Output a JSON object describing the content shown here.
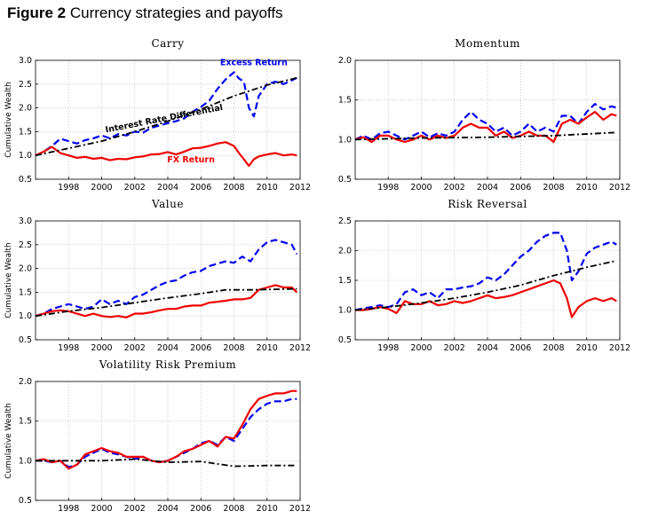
{
  "figure_label": "Figure 2",
  "figure_title": "Currency strategies and payoffs",
  "colors": {
    "excess": "#0000ee",
    "fx": "#ee0000",
    "ird": "#000000"
  },
  "chart_data": [
    {
      "type": "line",
      "title": "Carry",
      "ylabel": "Cumulative Wealth",
      "xlim": [
        1996,
        2012
      ],
      "ylim": [
        0.5,
        3.0
      ],
      "xticks": [
        1998,
        2000,
        2002,
        2004,
        2006,
        2008,
        2010,
        2012
      ],
      "yticks": [
        "0.5",
        "1.0",
        "1.5",
        "2.0",
        "2.5",
        "3.0"
      ],
      "grid": true,
      "annotations": [
        {
          "text": "Excess Return",
          "x": 2009.2,
          "y": 2.9,
          "color": "#0000ee",
          "rotate": 0
        },
        {
          "text": "Interest Rate Differential",
          "x": 2003.8,
          "y": 1.72,
          "color": "#000000",
          "rotate": -11
        },
        {
          "text": "FX Return",
          "x": 2005.4,
          "y": 0.85,
          "color": "#ee0000",
          "rotate": 0
        }
      ],
      "series": [
        {
          "key": "excess",
          "x": [
            1996,
            1996.5,
            1997,
            1997.5,
            1998,
            1998.5,
            1999,
            1999.5,
            2000,
            2000.5,
            2001,
            2001.5,
            2002,
            2002.5,
            2003,
            2003.5,
            2004,
            2004.5,
            2005,
            2005.5,
            2006,
            2006.5,
            2007,
            2007.5,
            2008,
            2008.3,
            2008.6,
            2008.9,
            2009.2,
            2009.5,
            2010,
            2010.5,
            2011,
            2011.5,
            2011.8
          ],
          "y": [
            1.0,
            1.08,
            1.2,
            1.35,
            1.3,
            1.25,
            1.32,
            1.36,
            1.42,
            1.36,
            1.45,
            1.42,
            1.5,
            1.48,
            1.58,
            1.63,
            1.68,
            1.72,
            1.78,
            1.92,
            2.02,
            2.15,
            2.4,
            2.6,
            2.75,
            2.62,
            2.55,
            2.0,
            1.82,
            2.25,
            2.5,
            2.55,
            2.5,
            2.58,
            2.63
          ]
        },
        {
          "key": "fx",
          "x": [
            1996,
            1996.5,
            1997,
            1997.5,
            1998,
            1998.5,
            1999,
            1999.5,
            2000,
            2000.5,
            2001,
            2001.5,
            2002,
            2002.5,
            2003,
            2003.5,
            2004,
            2004.5,
            2005,
            2005.5,
            2006,
            2006.5,
            2007,
            2007.5,
            2008,
            2008.3,
            2008.6,
            2008.9,
            2009.2,
            2009.5,
            2010,
            2010.5,
            2011,
            2011.5,
            2011.8
          ],
          "y": [
            1.0,
            1.08,
            1.18,
            1.05,
            1.0,
            0.95,
            0.97,
            0.93,
            0.95,
            0.9,
            0.93,
            0.92,
            0.96,
            0.98,
            1.02,
            1.03,
            1.07,
            1.02,
            1.08,
            1.15,
            1.16,
            1.2,
            1.25,
            1.28,
            1.2,
            1.05,
            0.92,
            0.78,
            0.92,
            0.98,
            1.02,
            1.05,
            1.0,
            1.02,
            1.0
          ]
        },
        {
          "key": "ird",
          "x": [
            1996,
            1998,
            2000,
            2002,
            2004,
            2006,
            2008,
            2010,
            2011.8
          ],
          "y": [
            1.0,
            1.15,
            1.3,
            1.5,
            1.72,
            1.97,
            2.25,
            2.48,
            2.63
          ]
        }
      ]
    },
    {
      "type": "line",
      "title": "Momentum",
      "ylabel": "",
      "xlim": [
        1996,
        2012
      ],
      "ylim": [
        0.5,
        2.0
      ],
      "xticks": [
        1998,
        2000,
        2002,
        2004,
        2006,
        2008,
        2010,
        2012
      ],
      "yticks": [
        "0.5",
        "1.0",
        "1.5",
        "2.0"
      ],
      "grid": true,
      "annotations": [],
      "series": [
        {
          "key": "excess",
          "x": [
            1996,
            1996.5,
            1997,
            1997.5,
            1998,
            1998.5,
            1999,
            1999.5,
            2000,
            2000.5,
            2001,
            2001.5,
            2002,
            2002.5,
            2003,
            2003.5,
            2004,
            2004.5,
            2005,
            2005.5,
            2006,
            2006.5,
            2007,
            2007.5,
            2008,
            2008.5,
            2009,
            2009.5,
            2010,
            2010.5,
            2011,
            2011.5,
            2011.8
          ],
          "y": [
            1.0,
            1.05,
            1.0,
            1.08,
            1.1,
            1.05,
            1.0,
            1.05,
            1.1,
            1.03,
            1.08,
            1.05,
            1.1,
            1.25,
            1.35,
            1.25,
            1.2,
            1.1,
            1.15,
            1.05,
            1.1,
            1.2,
            1.1,
            1.15,
            1.1,
            1.3,
            1.3,
            1.2,
            1.35,
            1.45,
            1.38,
            1.42,
            1.4
          ]
        },
        {
          "key": "fx",
          "x": [
            1996,
            1996.5,
            1997,
            1997.5,
            1998,
            1998.5,
            1999,
            1999.5,
            2000,
            2000.5,
            2001,
            2001.5,
            2002,
            2002.5,
            2003,
            2003.5,
            2004,
            2004.5,
            2005,
            2005.5,
            2006,
            2006.5,
            2007,
            2007.5,
            2008,
            2008.5,
            2009,
            2009.5,
            2010,
            2010.5,
            2011,
            2011.5,
            2011.8
          ],
          "y": [
            1.0,
            1.03,
            0.97,
            1.05,
            1.05,
            1.0,
            0.97,
            1.0,
            1.05,
            1.0,
            1.05,
            1.02,
            1.05,
            1.15,
            1.2,
            1.15,
            1.15,
            1.05,
            1.1,
            1.02,
            1.05,
            1.1,
            1.05,
            1.05,
            0.97,
            1.2,
            1.25,
            1.2,
            1.28,
            1.35,
            1.25,
            1.32,
            1.3
          ]
        },
        {
          "key": "ird",
          "x": [
            1996,
            2000,
            2004,
            2008,
            2011.8
          ],
          "y": [
            1.0,
            1.02,
            1.03,
            1.05,
            1.09
          ]
        }
      ]
    },
    {
      "type": "line",
      "title": "Value",
      "ylabel": "Cumulative Wealth",
      "xlim": [
        1996,
        2012
      ],
      "ylim": [
        0.5,
        3.0
      ],
      "xticks": [
        1998,
        2000,
        2002,
        2004,
        2006,
        2008,
        2010,
        2012
      ],
      "yticks": [
        "0.5",
        "1.0",
        "1.5",
        "2.0",
        "2.5",
        "3.0"
      ],
      "grid": true,
      "annotations": [],
      "series": [
        {
          "key": "excess",
          "x": [
            1996,
            1996.5,
            1997,
            1997.5,
            1998,
            1998.5,
            1999,
            1999.5,
            2000,
            2000.5,
            2001,
            2001.5,
            2002,
            2002.5,
            2003,
            2003.5,
            2004,
            2004.5,
            2005,
            2005.5,
            2006,
            2006.5,
            2007,
            2007.5,
            2008,
            2008.5,
            2009,
            2009.5,
            2010,
            2010.5,
            2011,
            2011.5,
            2011.8
          ],
          "y": [
            1.0,
            1.05,
            1.15,
            1.2,
            1.25,
            1.2,
            1.15,
            1.2,
            1.35,
            1.25,
            1.32,
            1.25,
            1.4,
            1.45,
            1.55,
            1.65,
            1.72,
            1.75,
            1.85,
            1.92,
            1.95,
            2.05,
            2.1,
            2.15,
            2.12,
            2.25,
            2.15,
            2.4,
            2.55,
            2.6,
            2.55,
            2.5,
            2.3
          ]
        },
        {
          "key": "fx",
          "x": [
            1996,
            1996.5,
            1997,
            1997.5,
            1998,
            1998.5,
            1999,
            1999.5,
            2000,
            2000.5,
            2001,
            2001.5,
            2002,
            2002.5,
            2003,
            2003.5,
            2004,
            2004.5,
            2005,
            2005.5,
            2006,
            2006.5,
            2007,
            2007.5,
            2008,
            2008.5,
            2009,
            2009.5,
            2010,
            2010.5,
            2011,
            2011.5,
            2011.8
          ],
          "y": [
            1.0,
            1.05,
            1.1,
            1.12,
            1.1,
            1.05,
            1.0,
            1.05,
            1.0,
            0.98,
            1.0,
            0.97,
            1.05,
            1.05,
            1.08,
            1.12,
            1.15,
            1.15,
            1.2,
            1.22,
            1.22,
            1.28,
            1.3,
            1.32,
            1.35,
            1.35,
            1.38,
            1.55,
            1.6,
            1.65,
            1.6,
            1.6,
            1.5
          ]
        },
        {
          "key": "ird",
          "x": [
            1996,
            1998,
            2000,
            2002,
            2004,
            2006,
            2007.5,
            2009,
            2011.8
          ],
          "y": [
            1.0,
            1.1,
            1.18,
            1.28,
            1.38,
            1.47,
            1.55,
            1.55,
            1.57
          ]
        }
      ]
    },
    {
      "type": "line",
      "title": "Risk Reversal",
      "ylabel": "",
      "xlim": [
        1996,
        2012
      ],
      "ylim": [
        0.5,
        2.5
      ],
      "xticks": [
        1998,
        2000,
        2002,
        2004,
        2006,
        2008,
        2010,
        2012
      ],
      "yticks": [
        "0.5",
        "1.0",
        "1.5",
        "2.0",
        "2.5"
      ],
      "grid": true,
      "annotations": [],
      "series": [
        {
          "key": "excess",
          "x": [
            1996,
            1996.5,
            1997,
            1997.5,
            1998,
            1998.5,
            1999,
            1999.5,
            2000,
            2000.5,
            2001,
            2001.5,
            2002,
            2002.5,
            2003,
            2003.5,
            2004,
            2004.5,
            2005,
            2005.5,
            2006,
            2006.5,
            2007,
            2007.5,
            2008,
            2008.4,
            2008.8,
            2009.1,
            2009.5,
            2010,
            2010.5,
            2011,
            2011.5,
            2011.8
          ],
          "y": [
            1.0,
            1.03,
            1.05,
            1.08,
            1.05,
            1.1,
            1.3,
            1.35,
            1.25,
            1.3,
            1.2,
            1.35,
            1.35,
            1.38,
            1.4,
            1.45,
            1.55,
            1.5,
            1.6,
            1.75,
            1.9,
            2.0,
            2.15,
            2.25,
            2.3,
            2.3,
            2.0,
            1.5,
            1.65,
            1.95,
            2.05,
            2.1,
            2.15,
            2.1
          ]
        },
        {
          "key": "fx",
          "x": [
            1996,
            1996.5,
            1997,
            1997.5,
            1998,
            1998.5,
            1999,
            1999.5,
            2000,
            2000.5,
            2001,
            2001.5,
            2002,
            2002.5,
            2003,
            2003.5,
            2004,
            2004.5,
            2005,
            2005.5,
            2006,
            2006.5,
            2007,
            2007.5,
            2008,
            2008.4,
            2008.8,
            2009.1,
            2009.5,
            2010,
            2010.5,
            2011,
            2011.5,
            2011.8
          ],
          "y": [
            1.0,
            1.0,
            1.02,
            1.05,
            1.02,
            0.95,
            1.15,
            1.1,
            1.1,
            1.15,
            1.08,
            1.1,
            1.15,
            1.12,
            1.15,
            1.2,
            1.25,
            1.2,
            1.22,
            1.25,
            1.3,
            1.35,
            1.4,
            1.45,
            1.5,
            1.45,
            1.2,
            0.88,
            1.05,
            1.15,
            1.2,
            1.15,
            1.2,
            1.15
          ]
        },
        {
          "key": "ird",
          "x": [
            1996,
            1998,
            2000,
            2002,
            2004,
            2006,
            2008,
            2010,
            2011.8
          ],
          "y": [
            1.0,
            1.05,
            1.12,
            1.2,
            1.3,
            1.42,
            1.58,
            1.72,
            1.83
          ]
        }
      ]
    },
    {
      "type": "line",
      "title": "Volatility Risk Premium",
      "ylabel": "Cumulative Wealth",
      "xlim": [
        1996,
        2012
      ],
      "ylim": [
        0.5,
        2.0
      ],
      "xticks": [
        1998,
        2000,
        2002,
        2004,
        2006,
        2008,
        2010,
        2012
      ],
      "yticks": [
        "0.5",
        "1.0",
        "1.5",
        "2.0"
      ],
      "grid": true,
      "annotations": [],
      "series": [
        {
          "key": "excess",
          "x": [
            1996,
            1996.5,
            1997,
            1997.5,
            1998,
            1998.5,
            1999,
            1999.5,
            2000,
            2000.5,
            2001,
            2001.5,
            2002,
            2002.5,
            2003,
            2003.5,
            2004,
            2004.5,
            2005,
            2005.5,
            2006,
            2006.5,
            2007,
            2007.5,
            2008,
            2008.5,
            2009,
            2009.5,
            2010,
            2010.5,
            2011,
            2011.5,
            2011.8
          ],
          "y": [
            1.0,
            1.0,
            0.98,
            1.0,
            0.92,
            0.95,
            1.05,
            1.1,
            1.15,
            1.1,
            1.08,
            1.05,
            1.02,
            1.05,
            1.0,
            0.98,
            1.0,
            1.05,
            1.1,
            1.15,
            1.22,
            1.25,
            1.2,
            1.3,
            1.25,
            1.4,
            1.55,
            1.65,
            1.72,
            1.75,
            1.75,
            1.78,
            1.78
          ]
        },
        {
          "key": "fx",
          "x": [
            1996,
            1996.5,
            1997,
            1997.5,
            1998,
            1998.5,
            1999,
            1999.5,
            2000,
            2000.5,
            2001,
            2001.5,
            2002,
            2002.5,
            2003,
            2003.5,
            2004,
            2004.5,
            2005,
            2005.5,
            2006,
            2006.5,
            2007,
            2007.5,
            2008,
            2008.5,
            2009,
            2009.5,
            2010,
            2010.5,
            2011,
            2011.5,
            2011.8
          ],
          "y": [
            1.0,
            1.02,
            0.98,
            1.0,
            0.9,
            0.95,
            1.08,
            1.12,
            1.16,
            1.12,
            1.1,
            1.05,
            1.05,
            1.05,
            1.0,
            0.98,
            1.0,
            1.05,
            1.12,
            1.15,
            1.2,
            1.25,
            1.18,
            1.3,
            1.28,
            1.45,
            1.65,
            1.78,
            1.82,
            1.85,
            1.85,
            1.88,
            1.88
          ]
        },
        {
          "key": "ird",
          "x": [
            1996,
            1998,
            2000,
            2002,
            2004,
            2006,
            2008,
            2010,
            2011.8
          ],
          "y": [
            1.0,
            1.0,
            1.0,
            1.02,
            0.98,
            0.99,
            0.93,
            0.94,
            0.94
          ]
        }
      ]
    }
  ]
}
